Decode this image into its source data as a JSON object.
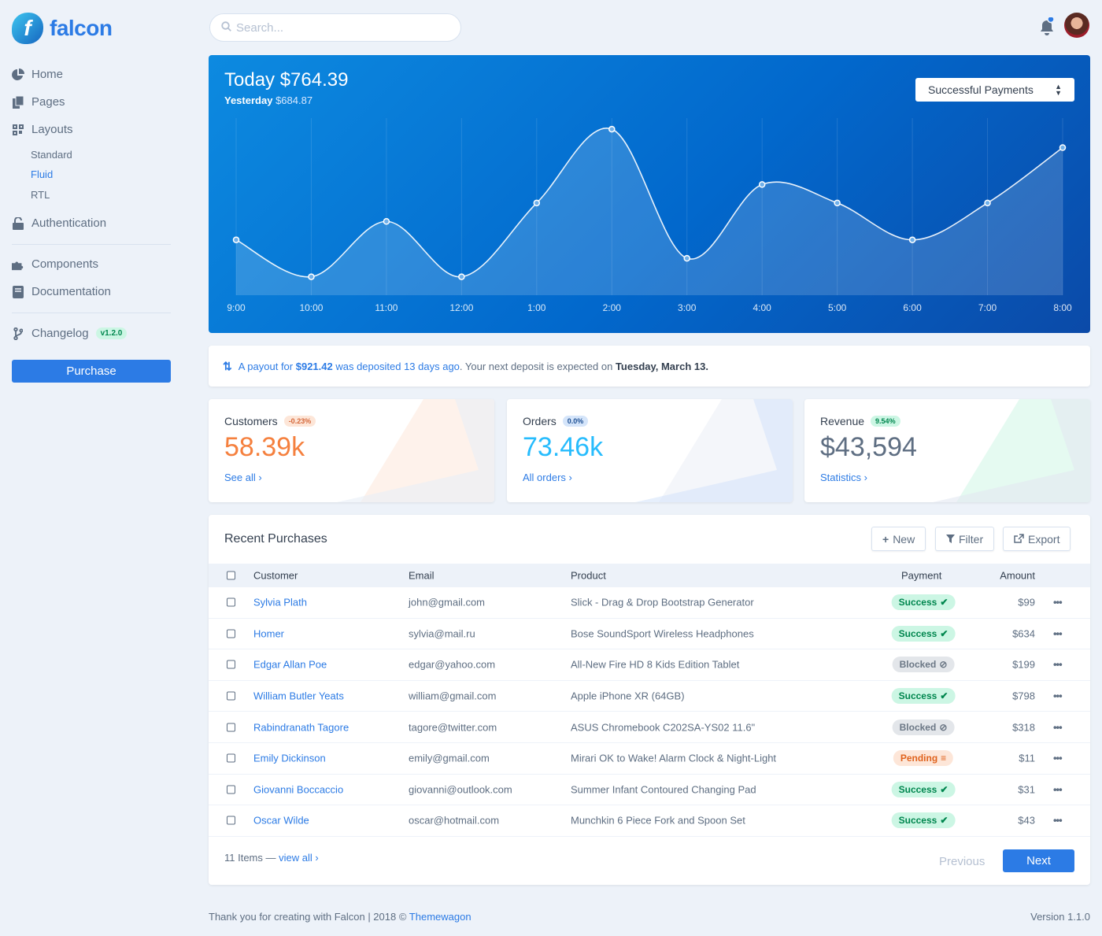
{
  "brand": {
    "name": "falcon",
    "mark": "f"
  },
  "sidebar": {
    "items": [
      {
        "label": "Home",
        "icon": "pie-chart-icon"
      },
      {
        "label": "Pages",
        "icon": "copy-icon"
      },
      {
        "label": "Layouts",
        "icon": "qrcode-icon"
      },
      {
        "label": "Authentication",
        "icon": "unlock-icon"
      },
      {
        "label": "Components",
        "icon": "puzzle-icon"
      },
      {
        "label": "Documentation",
        "icon": "book-icon"
      },
      {
        "label": "Changelog",
        "icon": "code-branch-icon",
        "badge": "v1.2.0"
      }
    ],
    "layouts_sub": [
      {
        "label": "Standard"
      },
      {
        "label": "Fluid",
        "active": true
      },
      {
        "label": "RTL"
      }
    ],
    "purchase_label": "Purchase"
  },
  "search": {
    "placeholder": "Search..."
  },
  "hero": {
    "today_label": "Today $764.39",
    "yesterday_label": "Yesterday",
    "yesterday_value": "$684.87",
    "select_value": "Successful Payments"
  },
  "chart_data": {
    "type": "area",
    "x": [
      "9:00",
      "10:00",
      "11:00",
      "12:00",
      "1:00",
      "2:00",
      "3:00",
      "4:00",
      "5:00",
      "6:00",
      "7:00",
      "8:00"
    ],
    "values": [
      3,
      1,
      4,
      1,
      5,
      9,
      2,
      6,
      5,
      3,
      5,
      8
    ],
    "ylim": [
      0,
      9.6
    ],
    "grid": "vertical",
    "colors": {
      "line": "#ffffff",
      "fill": "#ffffff"
    }
  },
  "notice": {
    "part1": "A payout for ",
    "amount": "$921.42",
    "part2": " was deposited 13 days ago",
    "part3": ". Your next deposit is expected on ",
    "date": "Tuesday, March 13."
  },
  "stats": [
    {
      "label": "Customers",
      "change": "-0.23%",
      "value": "58.39k",
      "link": "See all",
      "color": "#f5803e",
      "pill_bg": "#fde6d8",
      "pill_color": "#d5683b"
    },
    {
      "label": "Orders",
      "change": "0.0%",
      "value": "73.46k",
      "link": "All orders",
      "color": "#27bcfd",
      "pill_bg": "#d5e5fa",
      "pill_color": "#1c4f93"
    },
    {
      "label": "Revenue",
      "change": "9.54%",
      "value": "$43,594",
      "link": "Statistics",
      "color": "#5e6e82",
      "pill_bg": "#ccf6e4",
      "pill_color": "#00864e"
    }
  ],
  "purchases": {
    "title": "Recent Purchases",
    "buttons": {
      "new": "New",
      "filter": "Filter",
      "export": "Export"
    },
    "columns": [
      "Customer",
      "Email",
      "Product",
      "Payment",
      "Amount"
    ],
    "rows": [
      {
        "customer": "Sylvia Plath",
        "email": "john@gmail.com",
        "product": "Slick - Drag & Drop Bootstrap Generator",
        "status": "Success",
        "amount": "$99"
      },
      {
        "customer": "Homer",
        "email": "sylvia@mail.ru",
        "product": "Bose SoundSport Wireless Headphones",
        "status": "Success",
        "amount": "$634"
      },
      {
        "customer": "Edgar Allan Poe",
        "email": "edgar@yahoo.com",
        "product": "All-New Fire HD 8 Kids Edition Tablet",
        "status": "Blocked",
        "amount": "$199"
      },
      {
        "customer": "William Butler Yeats",
        "email": "william@gmail.com",
        "product": "Apple iPhone XR (64GB)",
        "status": "Success",
        "amount": "$798"
      },
      {
        "customer": "Rabindranath Tagore",
        "email": "tagore@twitter.com",
        "product": "ASUS Chromebook C202SA-YS02 11.6\"",
        "status": "Blocked",
        "amount": "$318"
      },
      {
        "customer": "Emily Dickinson",
        "email": "emily@gmail.com",
        "product": "Mirari OK to Wake! Alarm Clock & Night-Light",
        "status": "Pending",
        "amount": "$11"
      },
      {
        "customer": "Giovanni Boccaccio",
        "email": "giovanni@outlook.com",
        "product": "Summer Infant Contoured Changing Pad",
        "status": "Success",
        "amount": "$31"
      },
      {
        "customer": "Oscar Wilde",
        "email": "oscar@hotmail.com",
        "product": "Munchkin 6 Piece Fork and Spoon Set",
        "status": "Success",
        "amount": "$43"
      }
    ],
    "status_styles": {
      "Success": {
        "bg": "#ccf6e4",
        "color": "#00864e",
        "glyph": "✔"
      },
      "Blocked": {
        "bg": "#e3e6ea",
        "color": "#6b7785",
        "glyph": "⊘"
      },
      "Pending": {
        "bg": "#fde6d8",
        "color": "#e0631d",
        "glyph": "≡"
      }
    },
    "items_count": "11 Items — ",
    "view_all": "view all",
    "previous": "Previous",
    "next": "Next"
  },
  "footer": {
    "text": "Thank you for creating with Falcon | 2018 © ",
    "link": "Themewagon",
    "version": "Version 1.1.0"
  }
}
